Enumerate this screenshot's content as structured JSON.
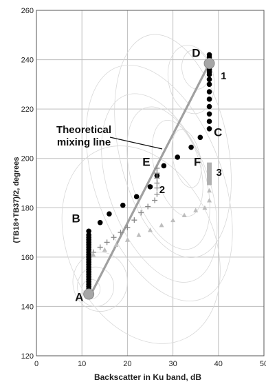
{
  "chart_data": {
    "type": "scatter",
    "xlabel": "Backscatter in Ku band, dB",
    "ylabel": "(TB18+TB37)/2, degrees",
    "xlim": [
      0,
      50
    ],
    "ylim": [
      120,
      260
    ],
    "x_ticks": [
      "0",
      "10",
      "20",
      "30",
      "40",
      "50"
    ],
    "y_ticks": [
      "120",
      "140",
      "160",
      "180",
      "200",
      "220",
      "240",
      "260"
    ],
    "grid": "on",
    "annotation": {
      "lines": [
        "Theoretical",
        "mixing line"
      ]
    },
    "mixing_line": {
      "from": [
        12,
        145
      ],
      "to": [
        38,
        238.5
      ]
    },
    "end_points": [
      {
        "label": "A",
        "x": 11.5,
        "y": 145
      },
      {
        "label": "D",
        "x": 38,
        "y": 238.5
      }
    ],
    "point_labels": [
      {
        "label": "A",
        "x": 11.5,
        "y": 145
      },
      {
        "label": "B",
        "x": 10.5,
        "y": 173
      },
      {
        "label": "C",
        "x": 39,
        "y": 209
      },
      {
        "label": "D",
        "x": 37.5,
        "y": 240
      },
      {
        "label": "E",
        "x": 24.5,
        "y": 197
      },
      {
        "label": "F",
        "x": 35.5,
        "y": 197
      }
    ],
    "series_labels": [
      {
        "label": "1",
        "x": 40.5,
        "y": 232
      },
      {
        "label": "2",
        "x": 27,
        "y": 186
      },
      {
        "label": "3",
        "x": 39.5,
        "y": 193
      }
    ],
    "series": [
      {
        "marker": "circle-black",
        "x": [
          11.5,
          11.5,
          11.5,
          11.5,
          11.5,
          11.5,
          11.5,
          11.5,
          11.5,
          11.5,
          11.5,
          11.5,
          11.5,
          11.5,
          11.5,
          11.5,
          11.5,
          11.5,
          11.5,
          11.5,
          11.5,
          11.5,
          11.5,
          11.5,
          14,
          16,
          19,
          22,
          25,
          26.5,
          28,
          31,
          34,
          36,
          38,
          38,
          38,
          38,
          38,
          38,
          38,
          38,
          38,
          38,
          38,
          38,
          38,
          38,
          38,
          38,
          38
        ],
        "y": [
          147,
          148,
          149,
          150,
          151,
          152,
          153,
          154,
          155,
          156,
          157,
          158,
          159,
          160,
          161,
          162,
          163,
          164,
          165,
          166,
          167,
          168,
          169,
          170.5,
          174,
          177.5,
          181,
          184.5,
          188.5,
          193,
          197,
          200.5,
          204.5,
          208.5,
          212,
          215,
          218,
          221,
          224,
          227,
          230,
          232,
          234,
          235,
          236,
          237,
          238,
          239,
          240,
          241,
          242
        ]
      },
      {
        "marker": "plus-gray",
        "x": [
          12.5,
          14,
          15.5,
          17,
          18.5,
          20,
          21.5,
          23,
          24.5,
          26,
          26.5,
          26.5,
          26.5,
          26.5,
          26.5,
          26.5
        ],
        "y": [
          162,
          164,
          166,
          168,
          170,
          172,
          175,
          178,
          180.5,
          183,
          185.5,
          188,
          190,
          192,
          194,
          196
        ]
      },
      {
        "marker": "triangle-lightgray",
        "x": [
          12.5,
          15,
          17.5,
          20,
          22.5,
          25,
          27.5,
          30,
          32.5,
          35,
          37,
          38,
          38,
          38
        ],
        "y": [
          161,
          163,
          165,
          167,
          169,
          171,
          173,
          175,
          177,
          179,
          180,
          183,
          187,
          190
        ]
      },
      {
        "marker": "square-gray",
        "x": [
          38,
          38,
          38,
          38,
          38,
          38
        ],
        "y": [
          190,
          191.5,
          193,
          194.5,
          196,
          197.5
        ]
      }
    ]
  }
}
